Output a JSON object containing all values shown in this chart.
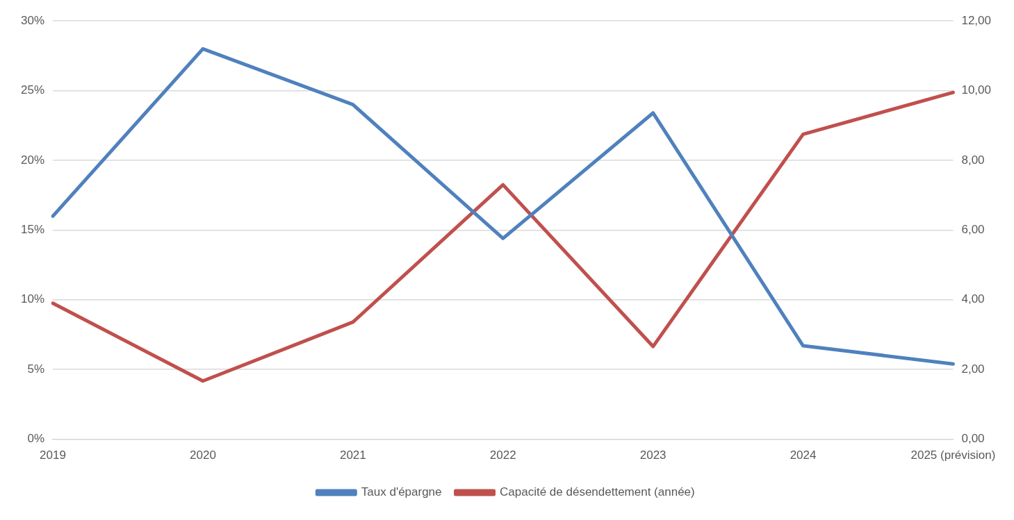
{
  "chart_data": {
    "type": "line",
    "categories": [
      "2019",
      "2020",
      "2021",
      "2022",
      "2023",
      "2024",
      "2025 (prévision)"
    ],
    "series": [
      {
        "name": "Taux d'épargne",
        "color": "#4f81bd",
        "values": [
          16.0,
          28.0,
          24.0,
          14.4,
          23.4,
          6.7,
          5.4
        ]
      },
      {
        "name": "Capacité de désendettement (année)",
        "color": "#c0504d",
        "axis": "y2",
        "values": [
          3.9,
          1.67,
          3.36,
          7.3,
          2.66,
          8.75,
          9.95
        ]
      }
    ],
    "ylim": [
      0,
      30
    ],
    "yticks": [
      {
        "value": 0,
        "label": "0%"
      },
      {
        "value": 5,
        "label": "5%"
      },
      {
        "value": 10,
        "label": "10%"
      },
      {
        "value": 15,
        "label": "15%"
      },
      {
        "value": 20,
        "label": "20%"
      },
      {
        "value": 25,
        "label": "25%"
      },
      {
        "value": 30,
        "label": "30%"
      }
    ],
    "y2lim": [
      0,
      12
    ],
    "y2ticks": [
      {
        "value": 0,
        "label": "0,00"
      },
      {
        "value": 2,
        "label": "2,00"
      },
      {
        "value": 4,
        "label": "4,00"
      },
      {
        "value": 6,
        "label": "6,00"
      },
      {
        "value": 8,
        "label": "8,00"
      },
      {
        "value": 10,
        "label": "10,00"
      },
      {
        "value": 12,
        "label": "12,00"
      }
    ],
    "grid": "y",
    "legend": "bottom",
    "marker": "none",
    "line_style": "solid"
  }
}
